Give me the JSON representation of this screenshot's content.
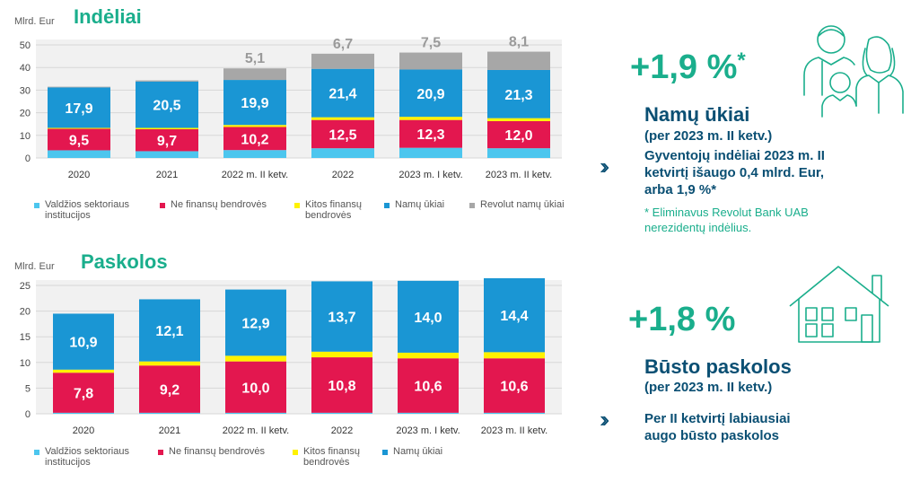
{
  "colors": {
    "valdzios": "#4cc6ee",
    "nefinansu": "#e3174f",
    "kitos": "#fff200",
    "namu": "#1a96d4",
    "revolut": "#a7a7a7",
    "accent": "#1aae8c",
    "dark": "#0a4f73"
  },
  "icons": [
    "family-icon",
    "house-icon",
    "double-chevron-icon"
  ],
  "right": {
    "deposits": {
      "pct": "+1,9 %",
      "star": "*",
      "title": "Namų ūkiai",
      "period": "(per 2023 m. II ketv.)",
      "note_lines": [
        "Gyventojų indėliai 2023 m. II",
        "ketvirtį išaugo 0,4 mlrd. Eur,",
        "arba 1,9 %*"
      ],
      "footnote_lines": [
        "* Eliminavus Revolut Bank UAB",
        "nerezidentų indėlius."
      ]
    },
    "loans": {
      "pct": "+1,8 %",
      "title": "Būsto paskolos",
      "period": "(per 2023 m. II ketv.)",
      "note_lines": [
        "Per II ketvirtį labiausiai",
        "augo būsto paskolos"
      ]
    }
  },
  "chart_data": [
    {
      "type": "bar",
      "stacked": true,
      "title": "Indėliai",
      "ylabel": "Mlrd. Eur",
      "ylim": [
        0,
        50
      ],
      "yticks": [
        0,
        10,
        20,
        30,
        40,
        50
      ],
      "grid": true,
      "legend_position": "bottom",
      "categories": [
        "2020",
        "2021",
        "2022 m. II ketv.",
        "2022",
        "2023 m. I ketv.",
        "2023 m. II ketv."
      ],
      "series": [
        {
          "name": "Valdžios sektoriaus institucijos",
          "legend_lines": [
            "Valdžios sektoriaus",
            "institucijos"
          ],
          "color": "#4cc6ee",
          "values": [
            3.4,
            3.0,
            3.5,
            4.3,
            4.5,
            4.3
          ],
          "labels": [
            "",
            "",
            "",
            "",
            "",
            ""
          ]
        },
        {
          "name": "Ne finansų bendrovės",
          "legend_lines": [
            "Ne finansų bendrovės"
          ],
          "color": "#e3174f",
          "values": [
            9.5,
            9.7,
            10.2,
            12.5,
            12.3,
            12.0
          ],
          "labels": [
            "9,5",
            "9,7",
            "10,2",
            "12,5",
            "12,3",
            "12,0"
          ]
        },
        {
          "name": "Kitos finansų bendrovės",
          "legend_lines": [
            "Kitos finansų",
            "bendrovės"
          ],
          "color": "#fff200",
          "values": [
            0.4,
            0.6,
            0.9,
            1.2,
            1.4,
            1.3
          ],
          "labels": [
            "",
            "",
            "",
            "",
            "",
            ""
          ]
        },
        {
          "name": "Namų ūkiai",
          "legend_lines": [
            "Namų ūkiai"
          ],
          "color": "#1a96d4",
          "values": [
            17.9,
            20.5,
            19.9,
            21.4,
            20.9,
            21.3
          ],
          "labels": [
            "17,9",
            "20,5",
            "19,9",
            "21,4",
            "20,9",
            "21,3"
          ]
        },
        {
          "name": "Revolut namų ūkiai",
          "legend_lines": [
            "Revolut namų ūkiai"
          ],
          "color": "#a7a7a7",
          "values": [
            0.3,
            0.5,
            5.1,
            6.7,
            7.5,
            8.1
          ],
          "labels": [
            "",
            "",
            "5,1",
            "6,7",
            "7,5",
            "8,1"
          ],
          "label_position": "above"
        }
      ]
    },
    {
      "type": "bar",
      "stacked": true,
      "title": "Paskolos",
      "ylabel": "Mlrd. Eur",
      "ylim": [
        0,
        25
      ],
      "yticks": [
        0,
        5,
        10,
        15,
        20,
        25
      ],
      "grid": true,
      "legend_position": "bottom",
      "categories": [
        "2020",
        "2021",
        "2022 m. II ketv.",
        "2022",
        "2023 m. I ketv.",
        "2023 m. II ketv."
      ],
      "series": [
        {
          "name": "Valdžios sektoriaus institucijos",
          "legend_lines": [
            "Valdžios sektoriaus",
            "institucijos"
          ],
          "color": "#4cc6ee",
          "values": [
            0.2,
            0.2,
            0.2,
            0.2,
            0.2,
            0.2
          ],
          "labels": [
            "",
            "",
            "",
            "",
            "",
            ""
          ]
        },
        {
          "name": "Ne finansų bendrovės",
          "legend_lines": [
            "Ne finansų bendrovės"
          ],
          "color": "#e3174f",
          "values": [
            7.8,
            9.2,
            10.0,
            10.8,
            10.6,
            10.6
          ],
          "labels": [
            "7,8",
            "9,2",
            "10,0",
            "10,8",
            "10,6",
            "10,6"
          ]
        },
        {
          "name": "Kitos finansų bendrovės",
          "legend_lines": [
            "Kitos finansų",
            "bendrovės"
          ],
          "color": "#fff200",
          "values": [
            0.6,
            0.8,
            1.1,
            1.1,
            1.1,
            1.2
          ],
          "labels": [
            "",
            "",
            "",
            "",
            "",
            ""
          ]
        },
        {
          "name": "Namų ūkiai",
          "legend_lines": [
            "Namų ūkiai"
          ],
          "color": "#1a96d4",
          "values": [
            10.9,
            12.1,
            12.9,
            13.7,
            14.0,
            14.4
          ],
          "labels": [
            "10,9",
            "12,1",
            "12,9",
            "13,7",
            "14,0",
            "14,4"
          ]
        }
      ]
    }
  ]
}
